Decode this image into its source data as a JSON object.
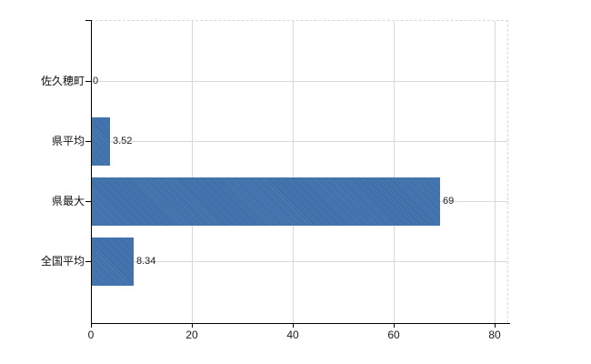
{
  "chart_data": {
    "type": "bar",
    "orientation": "horizontal",
    "title": "",
    "xlabel": "",
    "ylabel": "",
    "categories": [
      "佐久穂町",
      "県平均",
      "県最大",
      "全国平均"
    ],
    "values": [
      0,
      3.52,
      69,
      8.34
    ],
    "value_labels": [
      "0",
      "3.52",
      "69",
      "8.34"
    ],
    "x_ticks": [
      0,
      20,
      40,
      60,
      80
    ],
    "x_tick_labels": [
      "0",
      "20",
      "40",
      "60",
      "80"
    ],
    "xlim": [
      0,
      82.7
    ],
    "grid": true,
    "legend": false,
    "plot_border": "dashed-top-right",
    "colors": {
      "bar": "#3c72b1",
      "grid": "#d9d9d9",
      "axis": "#000000",
      "value_text": "#222222",
      "tick_text": "#1a1a1a",
      "background": "#ffffff"
    }
  }
}
